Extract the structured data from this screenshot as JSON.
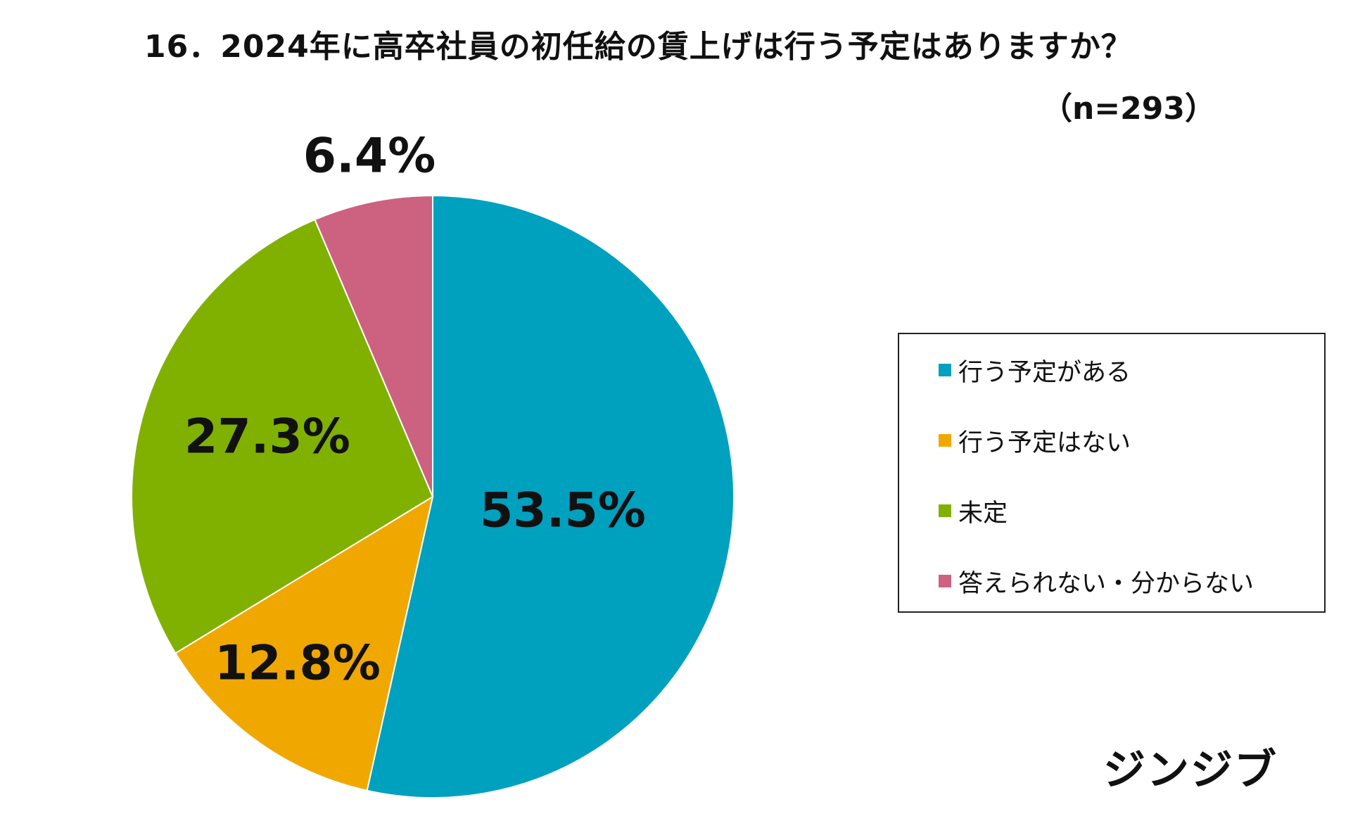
{
  "chart_data": {
    "type": "pie",
    "title": "16．2024年に高卒社員の初任給の賃上げは行う予定はありますか？",
    "subtitle": "（n=293）",
    "categories": [
      "行う予定がある",
      "行う予定はない",
      "未定",
      "答えられない・分からない"
    ],
    "values": [
      53.5,
      12.8,
      27.3,
      6.4
    ],
    "value_labels": [
      "53.5%",
      "12.8%",
      "27.3%",
      "6.4%"
    ],
    "colors": [
      "#00a0bf",
      "#f0a800",
      "#80b100",
      "#cc6280"
    ],
    "legend_placement": "right"
  },
  "brand": {
    "logo_text": "ジンジブ"
  }
}
